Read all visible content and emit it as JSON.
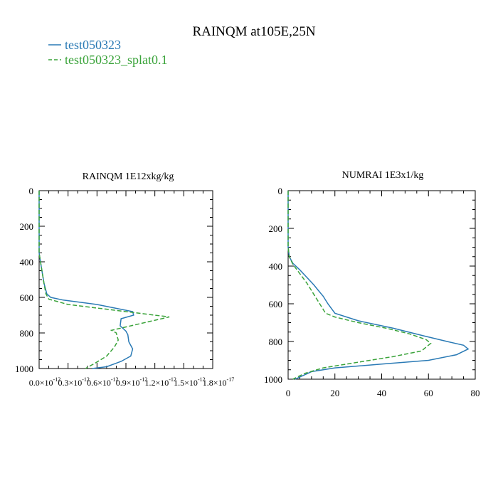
{
  "chart_data": {
    "title": "RAINQM at105E,25N",
    "legend": {
      "placement": "top-left",
      "entries": [
        {
          "name": "test050323",
          "color": "#2a7ab5",
          "style": "solid"
        },
        {
          "name": "test050323_splat0.1",
          "color": "#3aa33a",
          "style": "dashed"
        }
      ]
    },
    "panels": [
      {
        "type": "line",
        "title": "RAINQM  1E12xkg/kg",
        "xlim": [
          0,
          1.8e-12
        ],
        "ylim": [
          1000,
          0
        ],
        "xtick_labels": [
          "0.0×10",
          "0.3×10",
          "0.6×10",
          "0.9×10",
          "1.2×10",
          "1.5×10",
          "1.8×10"
        ],
        "xtick_exponent": "-12",
        "xtick_last_exponent": "-17",
        "ytick_labels": [
          "0",
          "200",
          "400",
          "600",
          "800",
          "1000"
        ],
        "yticks": [
          0,
          200,
          400,
          600,
          800,
          1000
        ],
        "series": [
          {
            "name": "test050323",
            "color": "#2a7ab5",
            "style": "solid",
            "x": [
              0,
              0,
              2e-14,
              5e-14,
              8e-14,
              1.2e-13,
              2.5e-13,
              6e-13,
              9.7e-13,
              9.8e-13,
              8.5e-13,
              8.4e-13,
              9e-13,
              9.2e-13,
              9.3e-13,
              9.7e-13,
              9.5e-13,
              8.5e-13,
              7e-13,
              5.5e-13
            ],
            "y": [
              0,
              350,
              420,
              520,
              580,
              600,
              615,
              640,
              680,
              700,
              720,
              760,
              790,
              810,
              850,
              890,
              930,
              960,
              990,
              1000
            ]
          },
          {
            "name": "test050323_splat0.1",
            "color": "#3aa33a",
            "style": "dashed",
            "x": [
              0,
              0,
              2e-14,
              5e-14,
              7e-14,
              1e-13,
              3e-13,
              7.5e-13,
              1.35e-12,
              9.5e-13,
              7.5e-13,
              8e-13,
              8.2e-13,
              7.8e-13,
              7e-13,
              5.8e-13,
              4.8e-13
            ],
            "y": [
              0,
              350,
              420,
              520,
              580,
              610,
              640,
              670,
              710,
              760,
              785,
              800,
              840,
              880,
              930,
              970,
              1000
            ]
          }
        ]
      },
      {
        "type": "line",
        "title": "NUMRAI  1E3x1/kg",
        "xlim": [
          0,
          80
        ],
        "ylim": [
          1000,
          0
        ],
        "xtick_labels": [
          "0",
          "20",
          "40",
          "60",
          "80"
        ],
        "xticks": [
          0,
          20,
          40,
          60,
          80
        ],
        "ytick_labels": [
          "0",
          "200",
          "400",
          "600",
          "800",
          "1000"
        ],
        "yticks": [
          0,
          200,
          400,
          600,
          800,
          1000
        ],
        "series": [
          {
            "name": "test050323",
            "color": "#2a7ab5",
            "style": "solid",
            "x": [
              0,
              0,
              0.5,
              2,
              5,
              8,
              11,
              13,
              15,
              17,
              20,
              30,
              45,
              58,
              68,
              75,
              77,
              72,
              60,
              40,
              20,
              10,
              3
            ],
            "y": [
              0,
              300,
              350,
              385,
              420,
              460,
              500,
              530,
              560,
              600,
              650,
              690,
              730,
              770,
              800,
              820,
              840,
              870,
              900,
              920,
              940,
              960,
              1000
            ]
          },
          {
            "name": "test050323_splat0.1",
            "color": "#3aa33a",
            "style": "dashed",
            "x": [
              0,
              0,
              0.5,
              2,
              5,
              8,
              10,
              12,
              14,
              16,
              20,
              30,
              42,
              52,
              59,
              61,
              57,
              45,
              30,
              15,
              7,
              2
            ],
            "y": [
              0,
              300,
              350,
              390,
              440,
              490,
              530,
              570,
              610,
              650,
              670,
              700,
              730,
              760,
              790,
              810,
              850,
              880,
              910,
              940,
              970,
              1000
            ]
          }
        ]
      }
    ]
  }
}
